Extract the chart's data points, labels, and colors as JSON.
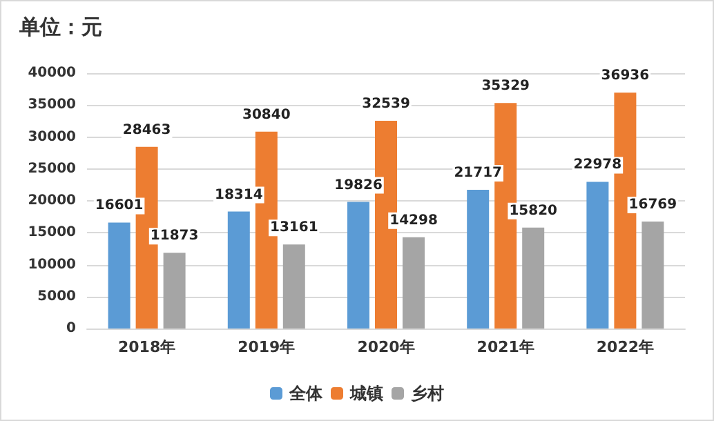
{
  "chart_data": {
    "type": "bar",
    "title": "单位：元",
    "categories": [
      "2018年",
      "2019年",
      "2020年",
      "2021年",
      "2022年"
    ],
    "series": [
      {
        "name": "全体",
        "color": "#5b9bd5",
        "values": [
          16601,
          18314,
          19826,
          21717,
          22978
        ]
      },
      {
        "name": "城镇",
        "color": "#ed7d31",
        "values": [
          28463,
          30840,
          32539,
          35329,
          36936
        ]
      },
      {
        "name": "乡村",
        "color": "#a5a5a5",
        "values": [
          11873,
          13161,
          14298,
          15820,
          16769
        ]
      }
    ],
    "ylim": [
      0,
      40000
    ],
    "yticks": [
      0,
      5000,
      10000,
      15000,
      20000,
      25000,
      30000,
      35000,
      40000
    ],
    "grid": "y",
    "legend": "bottom",
    "data_labels": true
  }
}
